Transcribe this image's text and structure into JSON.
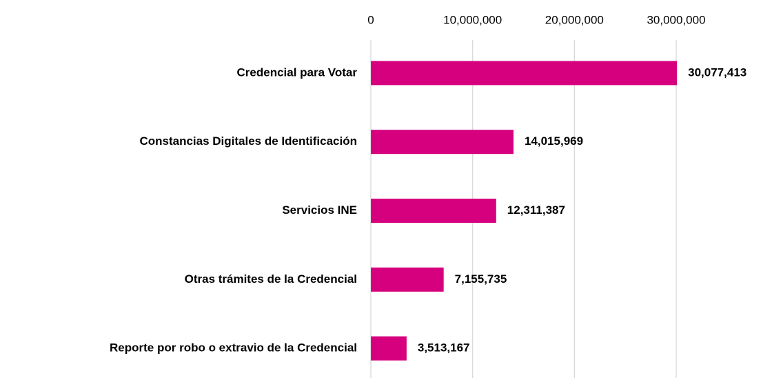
{
  "chart_data": {
    "type": "barh",
    "categories": [
      "Credencial para Votar",
      "Constancias Digitales de Identificación",
      "Servicios INE",
      "Otras trámites de la Credencial",
      "Reporte por robo o extravio de la Credencial"
    ],
    "values": [
      30077413,
      14015969,
      12311387,
      7155735,
      3513167
    ],
    "value_labels": [
      "30,077,413",
      "14,015,969",
      "12,311,387",
      "7,155,735",
      "3,513,167"
    ],
    "color": "#d6007e",
    "xlim": [
      0,
      30000000
    ],
    "xticks": [
      0,
      {
        "value": 10000000,
        "label": "10,000,000"
      },
      {
        "value": 20000000,
        "label": "20,000,000"
      },
      {
        "value": 30000000,
        "label": "30,000,000"
      }
    ],
    "grid": true
  }
}
